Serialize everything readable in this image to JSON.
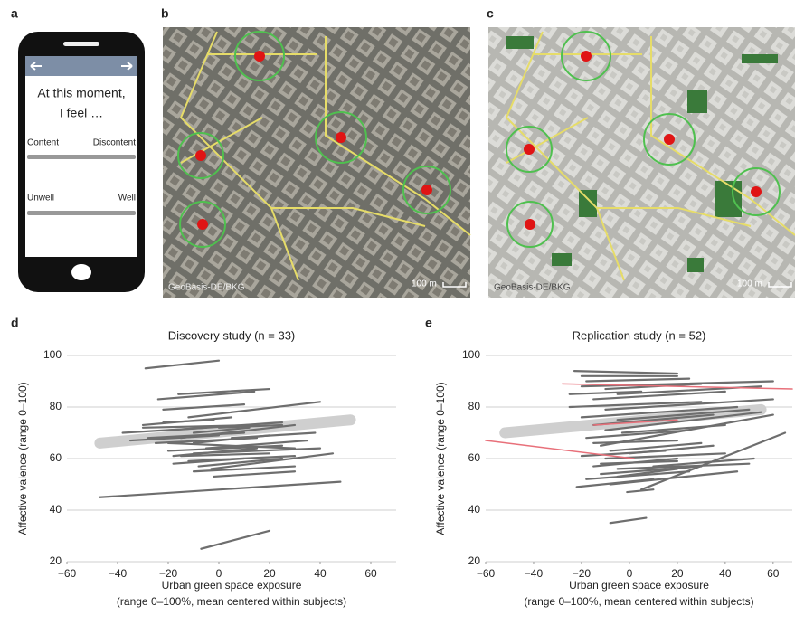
{
  "panel_labels": [
    "a",
    "b",
    "c",
    "d",
    "e"
  ],
  "phone": {
    "question": [
      "At this moment,",
      "I feel …"
    ],
    "scales": [
      {
        "left": "Content",
        "right": "Discontent"
      },
      {
        "left": "Unwell",
        "right": "Well"
      }
    ]
  },
  "maps": [
    {
      "credit": "GeoBasis-DE/BKG",
      "scale": "100 m"
    },
    {
      "credit": "GeoBasis-DE/BKG",
      "scale": "100 m"
    }
  ],
  "chart_data": [
    {
      "type": "line",
      "title": "Discovery study (n = 33)",
      "xlabel": [
        "Urban green space exposure",
        "(range 0–100%, mean centered within subjects)"
      ],
      "ylabel": "Affective valence (range 0–100)",
      "xlim": [
        -60,
        70
      ],
      "ylim": [
        20,
        100
      ],
      "xticks": [
        {
          "value": -60,
          "label": "−60"
        },
        {
          "value": -40,
          "label": "−40"
        },
        {
          "value": -20,
          "label": "−20"
        },
        0,
        20,
        40,
        60
      ],
      "yticks": [
        20,
        40,
        60,
        80,
        100
      ],
      "grid": true,
      "color": "#6e6e6e",
      "series": [
        {
          "x": [
            -47,
            52
          ],
          "values": [
            66,
            75
          ],
          "color": "#cfcfcf",
          "width": 12
        },
        {
          "x": [
            -29,
            0
          ],
          "values": [
            95,
            98
          ]
        },
        {
          "x": [
            -24,
            14
          ],
          "values": [
            83,
            86
          ]
        },
        {
          "x": [
            -16,
            20
          ],
          "values": [
            85,
            87
          ]
        },
        {
          "x": [
            -22,
            10
          ],
          "values": [
            79,
            81
          ]
        },
        {
          "x": [
            -12,
            40
          ],
          "values": [
            76,
            82
          ]
        },
        {
          "x": [
            -30,
            5
          ],
          "values": [
            73,
            76
          ]
        },
        {
          "x": [
            -38,
            -5
          ],
          "values": [
            70,
            72
          ]
        },
        {
          "x": [
            -20,
            25
          ],
          "values": [
            71,
            74
          ]
        },
        {
          "x": [
            -15,
            30
          ],
          "values": [
            68,
            73
          ]
        },
        {
          "x": [
            -28,
            10
          ],
          "values": [
            68,
            70
          ]
        },
        {
          "x": [
            -10,
            20
          ],
          "values": [
            66,
            69
          ]
        },
        {
          "x": [
            -25,
            15
          ],
          "values": [
            66,
            68
          ]
        },
        {
          "x": [
            -5,
            35
          ],
          "values": [
            64,
            67
          ]
        },
        {
          "x": [
            -20,
            25
          ],
          "values": [
            63,
            65
          ]
        },
        {
          "x": [
            -10,
            40
          ],
          "values": [
            62,
            64
          ]
        },
        {
          "x": [
            -15,
            20
          ],
          "values": [
            61,
            62
          ]
        },
        {
          "x": [
            -12,
            30
          ],
          "values": [
            59,
            61
          ]
        },
        {
          "x": [
            -8,
            25
          ],
          "values": [
            57,
            60
          ]
        },
        {
          "x": [
            -3,
            45
          ],
          "values": [
            56,
            62
          ]
        },
        {
          "x": [
            -18,
            10
          ],
          "values": [
            58,
            60
          ]
        },
        {
          "x": [
            -10,
            30
          ],
          "values": [
            55,
            57
          ]
        },
        {
          "x": [
            -2,
            30
          ],
          "values": [
            53,
            55
          ]
        },
        {
          "x": [
            -30,
            15
          ],
          "values": [
            72,
            73
          ]
        },
        {
          "x": [
            5,
            38
          ],
          "values": [
            68,
            70
          ]
        },
        {
          "x": [
            -35,
            0
          ],
          "values": [
            67,
            69
          ]
        },
        {
          "x": [
            -47,
            48
          ],
          "values": [
            45,
            51
          ]
        },
        {
          "x": [
            -7,
            20
          ],
          "values": [
            25,
            32
          ]
        },
        {
          "x": [
            -22,
            -2
          ],
          "values": [
            74,
            75
          ]
        },
        {
          "x": [
            0,
            25
          ],
          "values": [
            72,
            73
          ]
        },
        {
          "x": [
            -10,
            12
          ],
          "values": [
            70,
            72
          ]
        },
        {
          "x": [
            -18,
            15
          ],
          "values": [
            61,
            64
          ]
        },
        {
          "x": [
            -20,
            30
          ],
          "values": [
            66,
            64
          ]
        }
      ]
    },
    {
      "type": "line",
      "title": "Replication study (n = 52)",
      "xlabel": [
        "Urban green space exposure",
        "(range 0–100%, mean centered within subjects)"
      ],
      "ylabel": "Affective valence (range 0–100)",
      "xlim": [
        -60,
        68
      ],
      "ylim": [
        20,
        100
      ],
      "xticks": [
        {
          "value": -60,
          "label": "−60"
        },
        {
          "value": -40,
          "label": "−40"
        },
        {
          "value": -20,
          "label": "−20"
        },
        0,
        20,
        40,
        60
      ],
      "yticks": [
        20,
        40,
        60,
        80,
        100
      ],
      "grid": true,
      "color": "#6e6e6e",
      "series": [
        {
          "x": [
            -52,
            55
          ],
          "values": [
            70,
            79
          ],
          "color": "#cfcfcf",
          "width": 12
        },
        {
          "x": [
            -23,
            20
          ],
          "values": [
            94,
            93
          ]
        },
        {
          "x": [
            -20,
            20
          ],
          "values": [
            92,
            92
          ]
        },
        {
          "x": [
            -18,
            25
          ],
          "values": [
            90,
            91
          ]
        },
        {
          "x": [
            -20,
            60
          ],
          "values": [
            88,
            90
          ]
        },
        {
          "x": [
            -10,
            30
          ],
          "values": [
            87,
            89
          ]
        },
        {
          "x": [
            -5,
            55
          ],
          "values": [
            85,
            88
          ]
        },
        {
          "x": [
            -15,
            40
          ],
          "values": [
            83,
            86
          ]
        },
        {
          "x": [
            -25,
            30
          ],
          "values": [
            80,
            82
          ]
        },
        {
          "x": [
            -10,
            60
          ],
          "values": [
            79,
            83
          ]
        },
        {
          "x": [
            -20,
            45
          ],
          "values": [
            76,
            80
          ]
        },
        {
          "x": [
            -5,
            50
          ],
          "values": [
            75,
            79
          ]
        },
        {
          "x": [
            -15,
            35
          ],
          "values": [
            73,
            77
          ]
        },
        {
          "x": [
            -10,
            55
          ],
          "values": [
            71,
            78
          ]
        },
        {
          "x": [
            -3,
            40
          ],
          "values": [
            70,
            73
          ]
        },
        {
          "x": [
            -18,
            25
          ],
          "values": [
            68,
            71
          ]
        },
        {
          "x": [
            -12,
            60
          ],
          "values": [
            65,
            77
          ]
        },
        {
          "x": [
            -8,
            30
          ],
          "values": [
            63,
            66
          ]
        },
        {
          "x": [
            -20,
            15
          ],
          "values": [
            61,
            63
          ]
        },
        {
          "x": [
            -10,
            40
          ],
          "values": [
            60,
            62
          ]
        },
        {
          "x": [
            -15,
            20
          ],
          "values": [
            57,
            60
          ]
        },
        {
          "x": [
            -5,
            50
          ],
          "values": [
            56,
            58
          ]
        },
        {
          "x": [
            -12,
            30
          ],
          "values": [
            54,
            57
          ]
        },
        {
          "x": [
            -18,
            25
          ],
          "values": [
            52,
            55
          ]
        },
        {
          "x": [
            -8,
            45
          ],
          "values": [
            50,
            55
          ]
        },
        {
          "x": [
            -22,
            10
          ],
          "values": [
            49,
            52
          ]
        },
        {
          "x": [
            -12,
            20
          ],
          "values": [
            58,
            59
          ]
        },
        {
          "x": [
            5,
            65
          ],
          "values": [
            48,
            70
          ]
        },
        {
          "x": [
            -1,
            10
          ],
          "values": [
            47,
            48
          ]
        },
        {
          "x": [
            -8,
            7
          ],
          "values": [
            35,
            37
          ]
        },
        {
          "x": [
            -15,
            20
          ],
          "values": [
            66,
            67
          ]
        },
        {
          "x": [
            0,
            35
          ],
          "values": [
            62,
            65
          ]
        },
        {
          "x": [
            -5,
            20
          ],
          "values": [
            53,
            56
          ]
        },
        {
          "x": [
            -25,
            5
          ],
          "values": [
            85,
            86
          ]
        },
        {
          "x": [
            10,
            52
          ],
          "values": [
            57,
            60
          ]
        },
        {
          "x": [
            -60,
            2
          ],
          "values": [
            67,
            60
          ],
          "color": "#e8707a",
          "width": 1.5
        },
        {
          "x": [
            -28,
            68
          ],
          "values": [
            89,
            87
          ],
          "color": "#e8707a",
          "width": 1.5
        },
        {
          "x": [
            -15,
            20
          ],
          "values": [
            73,
            75
          ],
          "color": "#e8707a",
          "width": 1.5
        }
      ]
    }
  ]
}
